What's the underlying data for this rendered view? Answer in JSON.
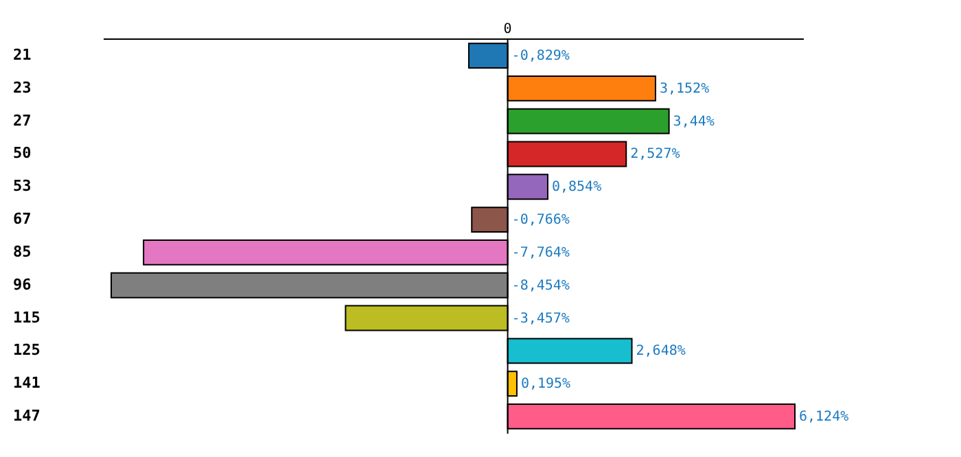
{
  "chart_data": {
    "type": "bar",
    "orientation": "horizontal",
    "categories": [
      "21",
      "23",
      "27",
      "50",
      "53",
      "67",
      "85",
      "96",
      "115",
      "125",
      "141",
      "147"
    ],
    "values": [
      -0.829,
      3.152,
      3.44,
      2.527,
      0.854,
      -0.766,
      -7.764,
      -8.454,
      -3.457,
      2.648,
      0.195,
      6.124
    ],
    "colors": [
      "#1f77b4",
      "#ff7f0e",
      "#2ca02c",
      "#d62728",
      "#9467bd",
      "#8c564b",
      "#e377c2",
      "#7f7f7f",
      "#bcbd22",
      "#17becf",
      "#ffc000",
      "#ff5c8a"
    ],
    "value_labels": [
      "-0,829%",
      "3,152%",
      "3,44%",
      "2,527%",
      "0,854%",
      "-0,766%",
      "-7,764%",
      "-8,454%",
      "-3,457%",
      "2,648%",
      "0,195%",
      "6,124%"
    ],
    "annotations": [
      "0"
    ],
    "legend": false
  }
}
